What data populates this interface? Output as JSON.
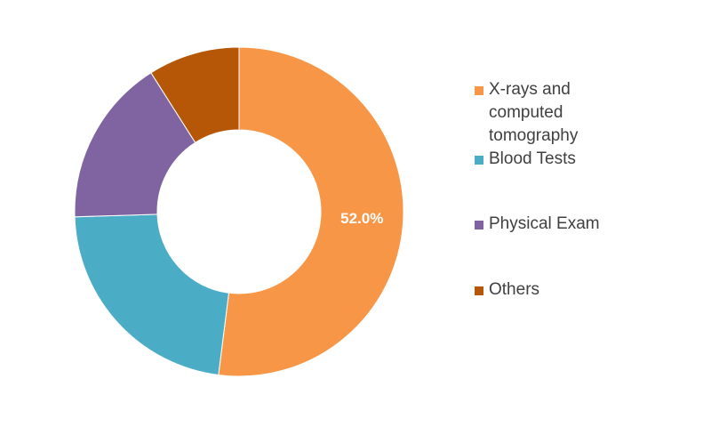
{
  "chart_data": {
    "type": "pie",
    "variant": "donut",
    "categories": [
      "X-rays and computed tomography",
      "Blood Tests",
      "Physical Exam",
      "Others"
    ],
    "values": [
      52.0,
      22.5,
      16.5,
      9.0
    ],
    "data_labels": [
      "52.0%",
      "",
      "",
      ""
    ],
    "colors": [
      "#F79646",
      "#4BACC6",
      "#8064A2",
      "#B65708"
    ],
    "legend": {
      "position": "right",
      "entries": [
        "X-rays and computed tomography",
        "Blood Tests",
        "Physical Exam",
        "Others"
      ]
    }
  }
}
